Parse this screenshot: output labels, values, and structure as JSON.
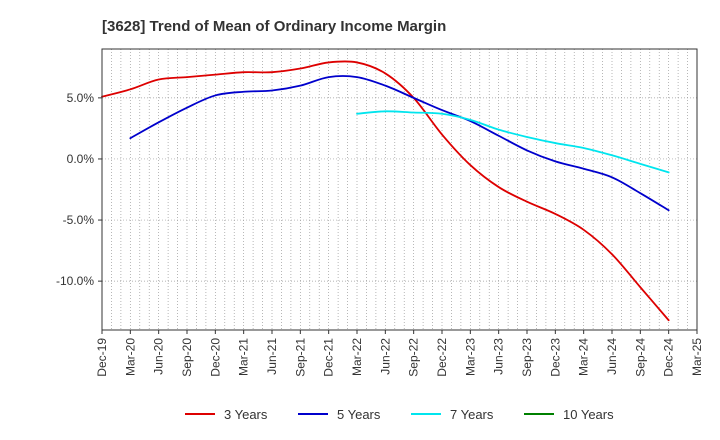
{
  "chart_data": {
    "type": "line",
    "title": "[3628]  Trend of Mean of Ordinary Income Margin",
    "xlabel": "",
    "ylabel": "",
    "x_ticks": [
      "Dec-19",
      "Mar-20",
      "Jun-20",
      "Sep-20",
      "Dec-20",
      "Mar-21",
      "Jun-21",
      "Sep-21",
      "Dec-21",
      "Mar-22",
      "Jun-22",
      "Sep-22",
      "Dec-22",
      "Mar-23",
      "Jun-23",
      "Sep-23",
      "Dec-23",
      "Mar-24",
      "Jun-24",
      "Sep-24",
      "Dec-24",
      "Mar-25"
    ],
    "y_ticks": [
      5.0,
      0.0,
      -5.0,
      -10.0
    ],
    "y_tick_labels": [
      "5.0%",
      "0.0%",
      "-5.0%",
      "-10.0%"
    ],
    "ylim": [
      -14,
      9
    ],
    "grid": true,
    "legend_position": "bottom",
    "series": [
      {
        "name": "3 Years",
        "color": "#dd0000",
        "points": [
          [
            "Dec-19",
            5.1
          ],
          [
            "Mar-20",
            5.7
          ],
          [
            "Jun-20",
            6.5
          ],
          [
            "Sep-20",
            6.7
          ],
          [
            "Dec-20",
            6.9
          ],
          [
            "Mar-21",
            7.1
          ],
          [
            "Jun-21",
            7.1
          ],
          [
            "Sep-21",
            7.4
          ],
          [
            "Dec-21",
            7.9
          ],
          [
            "Mar-22",
            7.9
          ],
          [
            "Jun-22",
            7.0
          ],
          [
            "Sep-22",
            5.0
          ],
          [
            "Dec-22",
            2.0
          ],
          [
            "Mar-23",
            -0.5
          ],
          [
            "Jun-23",
            -2.3
          ],
          [
            "Sep-23",
            -3.5
          ],
          [
            "Dec-23",
            -4.5
          ],
          [
            "Mar-24",
            -5.8
          ],
          [
            "Jun-24",
            -7.8
          ],
          [
            "Sep-24",
            -10.5
          ],
          [
            "Dec-24",
            -13.2
          ]
        ]
      },
      {
        "name": "5 Years",
        "color": "#0000cc",
        "points": [
          [
            "Mar-20",
            1.7
          ],
          [
            "Jun-20",
            3.0
          ],
          [
            "Sep-20",
            4.2
          ],
          [
            "Dec-20",
            5.2
          ],
          [
            "Mar-21",
            5.5
          ],
          [
            "Jun-21",
            5.6
          ],
          [
            "Sep-21",
            6.0
          ],
          [
            "Dec-21",
            6.7
          ],
          [
            "Mar-22",
            6.7
          ],
          [
            "Jun-22",
            6.0
          ],
          [
            "Sep-22",
            5.0
          ],
          [
            "Dec-22",
            4.0
          ],
          [
            "Mar-23",
            3.1
          ],
          [
            "Jun-23",
            1.9
          ],
          [
            "Sep-23",
            0.7
          ],
          [
            "Dec-23",
            -0.2
          ],
          [
            "Mar-24",
            -0.8
          ],
          [
            "Jun-24",
            -1.5
          ],
          [
            "Sep-24",
            -2.8
          ],
          [
            "Dec-24",
            -4.2
          ]
        ]
      },
      {
        "name": "7 Years",
        "color": "#00e5ee",
        "points": [
          [
            "Mar-22",
            3.7
          ],
          [
            "Jun-22",
            3.9
          ],
          [
            "Sep-22",
            3.8
          ],
          [
            "Dec-22",
            3.7
          ],
          [
            "Mar-23",
            3.2
          ],
          [
            "Jun-23",
            2.4
          ],
          [
            "Sep-23",
            1.8
          ],
          [
            "Dec-23",
            1.3
          ],
          [
            "Mar-24",
            0.9
          ],
          [
            "Jun-24",
            0.3
          ],
          [
            "Sep-24",
            -0.4
          ],
          [
            "Dec-24",
            -1.1
          ]
        ]
      },
      {
        "name": "10 Years",
        "color": "#008000",
        "points": []
      }
    ]
  }
}
